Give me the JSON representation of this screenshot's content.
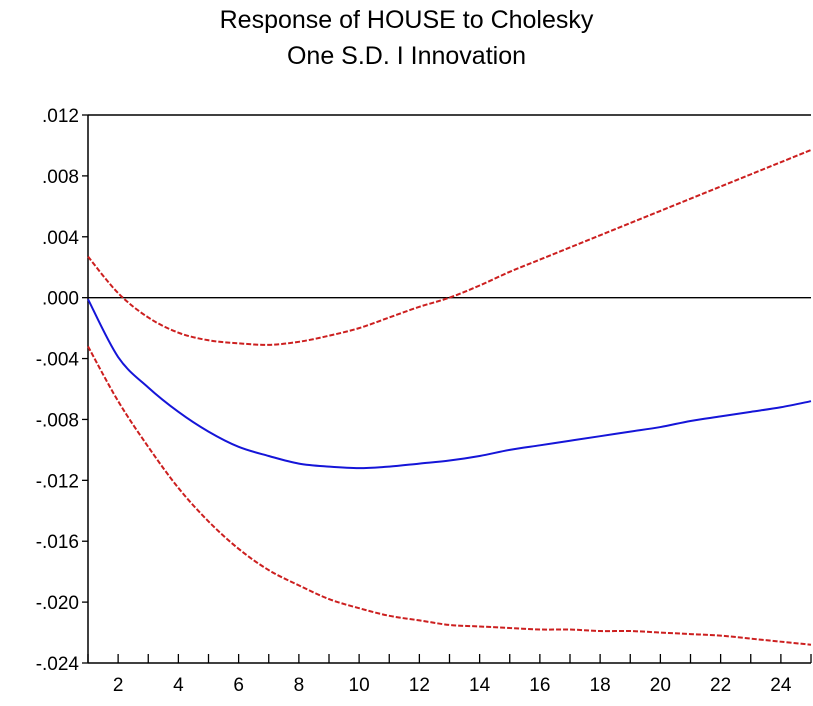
{
  "chart_data": {
    "type": "line",
    "title": [
      "Response of HOUSE to Cholesky",
      "One S.D. I Innovation"
    ],
    "xlabel": "",
    "ylabel": "",
    "xlim": [
      1,
      25
    ],
    "ylim": [
      -0.024,
      0.012
    ],
    "x_ticks": [
      2,
      4,
      6,
      8,
      10,
      12,
      14,
      16,
      18,
      20,
      22,
      24
    ],
    "x_tick_labels": [
      "2",
      "4",
      "6",
      "8",
      "10",
      "12",
      "14",
      "16",
      "18",
      "20",
      "22",
      "24"
    ],
    "y_ticks": [
      0.012,
      0.008,
      0.004,
      0.0,
      -0.004,
      -0.008,
      -0.012,
      -0.016,
      -0.02,
      -0.024
    ],
    "y_tick_labels": [
      ".012",
      ".008",
      ".004",
      ".000",
      "-.004",
      "-.008",
      "-.012",
      "-.016",
      "-.020",
      "-.024"
    ],
    "zero_line": true,
    "grid": false,
    "x": [
      1,
      2,
      3,
      4,
      5,
      6,
      7,
      8,
      9,
      10,
      11,
      12,
      13,
      14,
      15,
      16,
      17,
      18,
      19,
      20,
      21,
      22,
      23,
      24,
      25
    ],
    "series": [
      {
        "role": "response",
        "color": "#1515d8",
        "style": "solid",
        "values": [
          -0.0001,
          -0.0039,
          -0.0059,
          -0.0075,
          -0.0088,
          -0.0098,
          -0.0104,
          -0.0109,
          -0.0111,
          -0.0112,
          -0.0111,
          -0.0109,
          -0.0107,
          -0.0104,
          -0.01,
          -0.0097,
          -0.0094,
          -0.0091,
          -0.0088,
          -0.0085,
          -0.0081,
          -0.0078,
          -0.0075,
          -0.0072,
          -0.0068
        ]
      },
      {
        "role": "upper-band",
        "color": "#cc1f1f",
        "style": "dashed",
        "values": [
          0.0027,
          0.0003,
          -0.0013,
          -0.0023,
          -0.0028,
          -0.003,
          -0.0031,
          -0.0029,
          -0.0025,
          -0.002,
          -0.0013,
          -0.0006,
          0.0,
          0.0008,
          0.0017,
          0.0025,
          0.0033,
          0.0041,
          0.0049,
          0.0057,
          0.0065,
          0.0073,
          0.0081,
          0.0089,
          0.0097
        ]
      },
      {
        "role": "lower-band",
        "color": "#cc1f1f",
        "style": "dashed",
        "values": [
          -0.0032,
          -0.0068,
          -0.0098,
          -0.0125,
          -0.0147,
          -0.0165,
          -0.0179,
          -0.0189,
          -0.0198,
          -0.0204,
          -0.0209,
          -0.0212,
          -0.0215,
          -0.0216,
          -0.0217,
          -0.0218,
          -0.0218,
          -0.0219,
          -0.0219,
          -0.022,
          -0.0221,
          -0.0222,
          -0.0224,
          -0.0226,
          -0.0228
        ]
      }
    ]
  }
}
